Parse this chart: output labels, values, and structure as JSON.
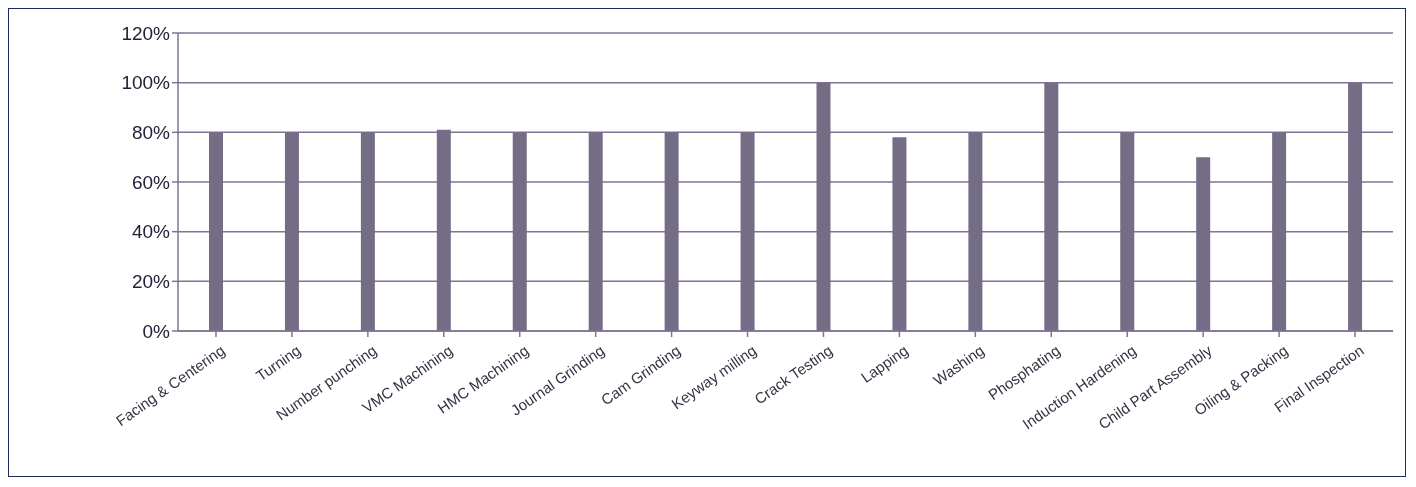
{
  "chart_data": {
    "type": "bar",
    "categories": [
      "Facing & Centering",
      "Turning",
      "Number punching",
      "VMC Machining",
      "HMC Machining",
      "Journal Grinding",
      "Cam Grinding",
      "Keyway milling",
      "Crack Testing",
      "Lapping",
      "Washing",
      "Phosphating",
      "Induction Hardening",
      "Child Part Assembly",
      "Oiling & Packing",
      "Final Inspection"
    ],
    "values": [
      80,
      80,
      80,
      81,
      80,
      80,
      80,
      80,
      100,
      78,
      80,
      100,
      80,
      70,
      80,
      100
    ],
    "color": "#756d86",
    "ylim": [
      0,
      120
    ],
    "yticks": [
      {
        "value": 0,
        "label": "0%"
      },
      {
        "value": 20,
        "label": "20%"
      },
      {
        "value": 40,
        "label": "40%"
      },
      {
        "value": 60,
        "label": "60%"
      },
      {
        "value": 80,
        "label": "80%"
      },
      {
        "value": 100,
        "label": "100%"
      },
      {
        "value": 120,
        "label": "120%"
      }
    ],
    "grid": "y"
  }
}
